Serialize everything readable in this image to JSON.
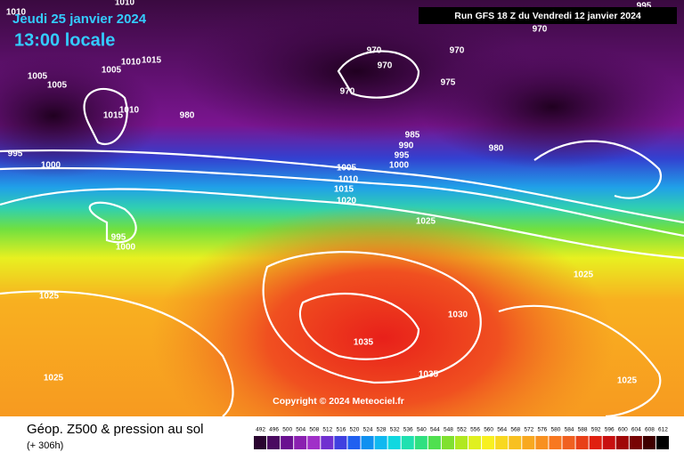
{
  "header": {
    "date": "Jeudi 25 janvier 2024",
    "time": "13:00 locale",
    "run": "Run GFS 18 Z du Vendredi 12 janvier 2024"
  },
  "isobar_labels": [
    "1010",
    "1010",
    "995",
    "970",
    "970",
    "970",
    "970",
    "1010",
    "1015",
    "1005",
    "1005",
    "1005",
    "975",
    "970",
    "1015",
    "1010",
    "980",
    "985",
    "990",
    "995",
    "980",
    "995",
    "1000",
    "1000",
    "1005",
    "1010",
    "1015",
    "1020",
    "1025",
    "995",
    "1000",
    "1025",
    "1030",
    "1025",
    "1035",
    "1035",
    "1025",
    "1025"
  ],
  "copyright": "Copyright © 2024 Meteociel.fr",
  "footer": {
    "title": "Géop. Z500 & pression au sol",
    "lead": "(+ 306h)"
  },
  "scale": [
    492,
    496,
    500,
    504,
    508,
    512,
    516,
    520,
    524,
    528,
    532,
    536,
    540,
    544,
    548,
    552,
    556,
    560,
    564,
    568,
    572,
    576,
    580,
    584,
    588,
    592,
    596,
    600,
    604,
    608,
    612
  ]
}
